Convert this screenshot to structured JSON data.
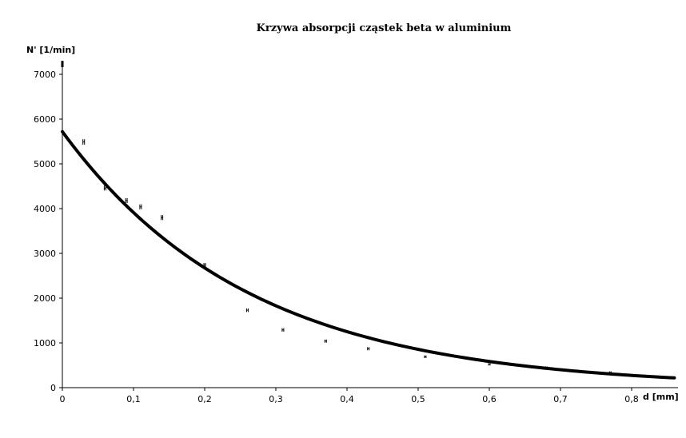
{
  "chart_data": {
    "type": "scatter",
    "title": "Krzywa absorpcji cząstek beta w aluminium",
    "xlabel": "d [mm]",
    "ylabel": "N' [1/min]",
    "xlim": [
      0,
      0.86
    ],
    "ylim": [
      0,
      7300
    ],
    "grid": false,
    "x_ticks": [
      0,
      0.1,
      0.2,
      0.3,
      0.4,
      0.5,
      0.6,
      0.7,
      0.8
    ],
    "x_tick_labels": [
      "0",
      "0,1",
      "0,2",
      "0,3",
      "0,4",
      "0,5",
      "0,6",
      "0,7",
      "0,8"
    ],
    "y_ticks": [
      0,
      1000,
      2000,
      3000,
      4000,
      5000,
      6000,
      7000
    ],
    "y_tick_labels": [
      "0",
      "1000",
      "2000",
      "3000",
      "4000",
      "5000",
      "6000",
      "7000"
    ],
    "series": [
      {
        "kind": "points_with_error_bars",
        "x": [
          0,
          0.03,
          0.06,
          0.09,
          0.11,
          0.14,
          0.2,
          0.26,
          0.31,
          0.37,
          0.43,
          0.51,
          0.6,
          0.68,
          0.77,
          0.86
        ],
        "y": [
          7230,
          5490,
          4460,
          4180,
          4040,
          3800,
          2740,
          1730,
          1290,
          1040,
          870,
          690,
          520,
          450,
          340,
          220
        ],
        "err": [
          70,
          60,
          55,
          55,
          55,
          55,
          45,
          40,
          40,
          35,
          35,
          30,
          25,
          25,
          25,
          20
        ]
      },
      {
        "kind": "fit_curve",
        "model": "exponential",
        "a": 5720,
        "b": 3.8,
        "x_range": [
          0,
          0.86
        ]
      }
    ]
  }
}
